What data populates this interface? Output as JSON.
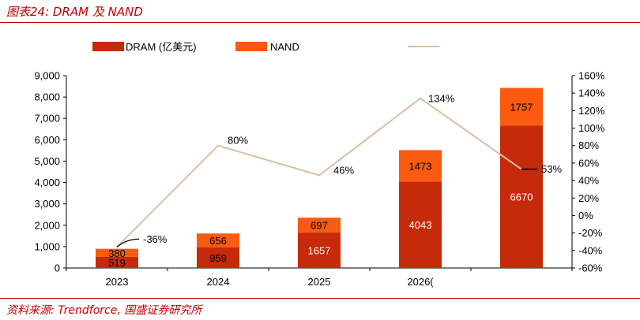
{
  "figure_title": "图表24:  DRAM 及 NAND",
  "source": "资料来源:  Trendforce, 国盛证券研究所",
  "colors": {
    "dram": "#c52a0b",
    "nand": "#fb5a11",
    "growth": "#d9bf9f",
    "accent": "#c00000"
  },
  "chart_data": {
    "type": "bar",
    "stacked": true,
    "categories": [
      "2023",
      "2024",
      "2025",
      "2026(",
      ""
    ],
    "series": [
      {
        "name": "DRAM (亿美元)",
        "values": [
          519,
          959,
          1657,
          4043,
          6670
        ]
      },
      {
        "name": "NAND",
        "values": [
          380,
          656,
          697,
          1473,
          1757
        ]
      }
    ],
    "line_series": {
      "name": "",
      "axis": "right",
      "values": [
        -36,
        80,
        46,
        134,
        53
      ],
      "labels": [
        "-36%",
        "80%",
        "46%",
        "134%",
        "53%"
      ]
    },
    "y_left": {
      "min": 0,
      "max": 9000,
      "ticks": [
        "0",
        "1,000",
        "2,000",
        "3,000",
        "4,000",
        "5,000",
        "6,000",
        "7,000",
        "8,000",
        "9,000"
      ]
    },
    "y_right": {
      "min": -60,
      "max": 160,
      "ticks": [
        "-60%",
        "-40%",
        "-20%",
        "0%",
        "20%",
        "40%",
        "60%",
        "80%",
        "100%",
        "120%",
        "140%",
        "160%"
      ]
    },
    "legend": [
      "DRAM (亿美元)",
      "NAND",
      ""
    ],
    "legend_position": "top",
    "grid": false
  }
}
